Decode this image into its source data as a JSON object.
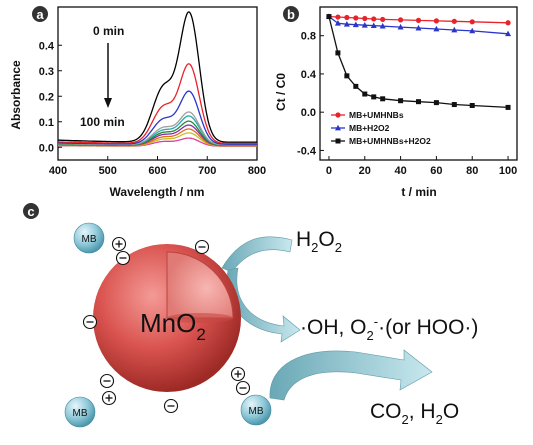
{
  "panels": {
    "a": "a",
    "b": "b",
    "c": "c"
  },
  "chart_data": [
    {
      "type": "line",
      "xlabel": "Wavelength / nm",
      "ylabel": "Absorbance",
      "xlim": [
        400,
        800
      ],
      "ylim": [
        -0.05,
        0.55
      ],
      "x_ticks": [
        400,
        500,
        600,
        700,
        800
      ],
      "y_ticks": [
        0.0,
        0.1,
        0.2,
        0.3,
        0.4
      ],
      "y_tick_labels": [
        "0.0",
        "0.1",
        "0.2",
        "0.3",
        "0.4"
      ],
      "annotations": {
        "top": "0 min",
        "bottom": "100 min"
      },
      "series": [
        {
          "color": "#000000",
          "peak": 0.52,
          "shoulder": 0.21,
          "baseline": 0.02
        },
        {
          "color": "#e8232a",
          "peak": 0.32,
          "shoulder": 0.14,
          "baseline": 0.015
        },
        {
          "color": "#2b36c8",
          "peak": 0.215,
          "shoulder": 0.095,
          "baseline": 0.012
        },
        {
          "color": "#a0a0a0",
          "peak": 0.135,
          "shoulder": 0.065,
          "baseline": 0.01
        },
        {
          "color": "#2aa8a8",
          "peak": 0.12,
          "shoulder": 0.055,
          "baseline": 0.01
        },
        {
          "color": "#1d8a3a",
          "peak": 0.1,
          "shoulder": 0.048,
          "baseline": 0.008
        },
        {
          "color": "#8a2aa8",
          "peak": 0.085,
          "shoulder": 0.04,
          "baseline": 0.008
        },
        {
          "color": "#e06a1e",
          "peak": 0.07,
          "shoulder": 0.033,
          "baseline": 0.006
        },
        {
          "color": "#c2c220",
          "peak": 0.055,
          "shoulder": 0.026,
          "baseline": 0.005
        },
        {
          "color": "#e0409a",
          "peak": 0.035,
          "shoulder": 0.018,
          "baseline": 0.004
        }
      ]
    },
    {
      "type": "line",
      "xlabel": "t / min",
      "ylabel": "Ct / C0",
      "xlim": [
        -5,
        105
      ],
      "ylim": [
        -0.5,
        1.1
      ],
      "x_ticks": [
        0,
        20,
        40,
        60,
        80,
        100
      ],
      "y_ticks": [
        -0.4,
        0.0,
        0.4,
        0.8
      ],
      "y_tick_labels": [
        "-0.4",
        "0.0",
        "0.4",
        "0.8"
      ],
      "series": [
        {
          "name": "MB+UMHNBs",
          "color": "#e8232a",
          "marker": "circle",
          "x": [
            0,
            5,
            10,
            15,
            20,
            25,
            30,
            40,
            50,
            60,
            70,
            80,
            100
          ],
          "y": [
            1.0,
            0.995,
            0.99,
            0.985,
            0.98,
            0.975,
            0.97,
            0.965,
            0.96,
            0.955,
            0.95,
            0.945,
            0.935
          ]
        },
        {
          "name": "MB+H2O2",
          "color": "#2b36c8",
          "marker": "triangle",
          "x": [
            0,
            5,
            10,
            15,
            20,
            25,
            30,
            40,
            50,
            60,
            70,
            80,
            100
          ],
          "y": [
            1.0,
            0.93,
            0.92,
            0.915,
            0.91,
            0.905,
            0.9,
            0.89,
            0.88,
            0.87,
            0.86,
            0.85,
            0.82
          ]
        },
        {
          "name": "MB+UMHNBs+H2O2",
          "color": "#111111",
          "marker": "square",
          "x": [
            0,
            5,
            10,
            15,
            20,
            25,
            30,
            40,
            50,
            60,
            70,
            80,
            100
          ],
          "y": [
            1.0,
            0.62,
            0.38,
            0.27,
            0.19,
            0.16,
            0.14,
            0.12,
            0.11,
            0.1,
            0.08,
            0.07,
            0.05
          ]
        }
      ]
    }
  ],
  "scheme": {
    "core_label": "MnO2",
    "mb_label": "MB",
    "h2o2": "H2O2",
    "radicals": "·OH, O2-·(or HOO·)",
    "products": "CO2, H2O",
    "colors": {
      "sphere": "#d9534f",
      "mb": "#8ec8d8",
      "arrow": "#7fb8c4"
    }
  }
}
